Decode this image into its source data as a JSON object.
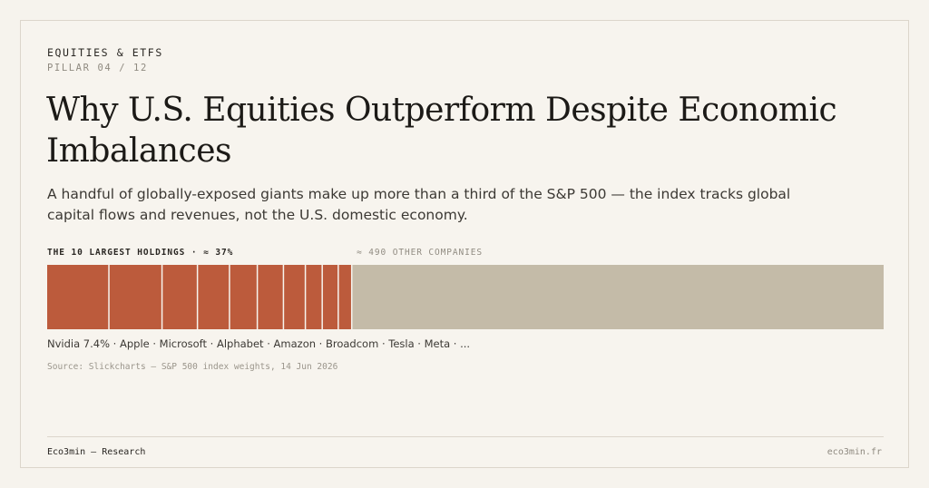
{
  "header": {
    "eyebrow": "EQUITIES & ETFS",
    "pillar": "PILLAR 04 / 12"
  },
  "title": "Why U.S. Equities Outperform Despite Economic Imbalances",
  "subtitle": "A handful of globally-exposed giants make up more than a third of the S&P 500 — the index tracks global capital flows and revenues, not the U.S. domestic economy.",
  "chart_data": {
    "type": "bar",
    "orientation": "horizontal-stacked",
    "label_top": "THE 10 LARGEST HOLDINGS · ≈ 37%",
    "label_other": "≈ 490 OTHER COMPANIES",
    "holdings_weights": [
      7.4,
      6.3,
      4.2,
      3.8,
      3.3,
      3.1,
      2.6,
      2.0,
      1.9,
      1.6
    ],
    "other_weight": 63,
    "names_line": "Nvidia 7.4% · Apple · Microsoft · Alphabet · Amazon · Broadcom · Tesla · Meta · ...",
    "source": "Source: Slickcharts — S&P 500 index weights, 14 Jun 2026",
    "colors": {
      "holdings": "#bc5b3c",
      "other": "#c4bba8",
      "divider": "#f7f4ee"
    }
  },
  "footer": {
    "left": "Eco3min — Research",
    "right": "eco3min.fr"
  }
}
